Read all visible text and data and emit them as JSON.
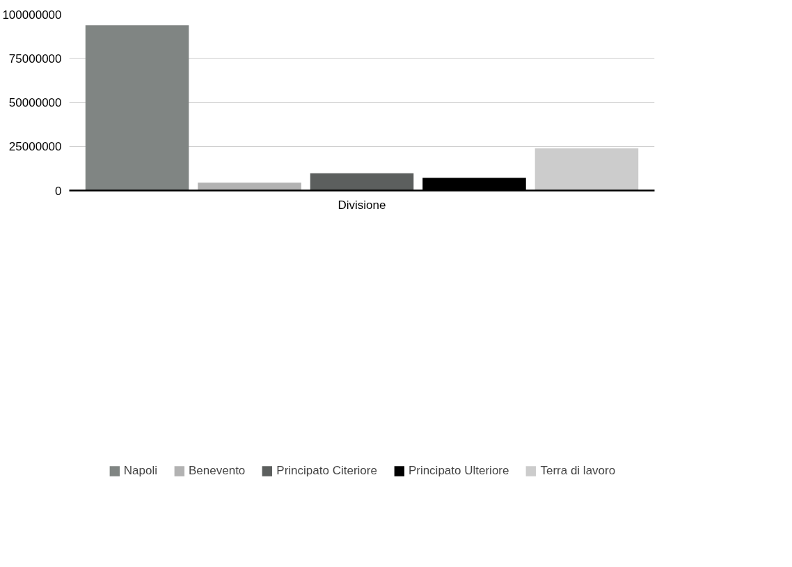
{
  "chart_data": {
    "type": "bar",
    "categories": [
      "Divisione"
    ],
    "series": [
      {
        "name": "Napoli",
        "color": "#808583",
        "values": [
          93800000
        ]
      },
      {
        "name": "Benevento",
        "color": "#b2b2b2",
        "values": [
          4400000
        ]
      },
      {
        "name": "Principato Citeriore",
        "color": "#5c5f5e",
        "values": [
          9800000
        ]
      },
      {
        "name": "Principato Ulteriore",
        "color": "#000000",
        "values": [
          7200000
        ]
      },
      {
        "name": "Terra di lavoro",
        "color": "#cccccc",
        "values": [
          23900000
        ]
      }
    ],
    "ylim": [
      0,
      100000000
    ],
    "yticks": [
      0,
      25000000,
      50000000,
      75000000,
      100000000
    ],
    "grid": "y",
    "legend": "bottom"
  }
}
